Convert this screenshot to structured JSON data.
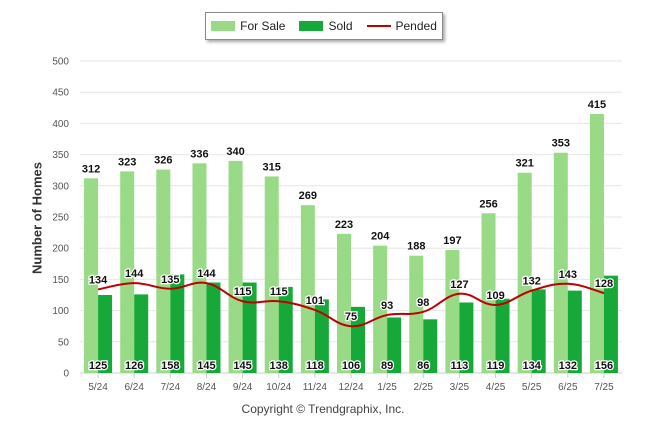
{
  "legend": {
    "for_sale_label": "For Sale",
    "sold_label": "Sold",
    "pended_label": "Pended"
  },
  "copyright": "Copyright © Trendgraphix, Inc.",
  "colors": {
    "for_sale": "#98da86",
    "sold": "#16a93a",
    "pended": "#c00000",
    "grid": "#e6e6e6",
    "axis_text": "#555555"
  },
  "chart_data": {
    "type": "bar",
    "ylabel": "Number of Homes",
    "xlabel": "",
    "ylim": [
      0,
      500
    ],
    "yticks": [
      0,
      50,
      100,
      150,
      200,
      250,
      300,
      350,
      400,
      450,
      500
    ],
    "grid": true,
    "legend_position": "top-center",
    "categories": [
      "5/24",
      "6/24",
      "7/24",
      "8/24",
      "9/24",
      "10/24",
      "11/24",
      "12/24",
      "1/25",
      "2/25",
      "3/25",
      "4/25",
      "5/25",
      "6/25",
      "7/25"
    ],
    "series": [
      {
        "name": "For Sale",
        "type": "bar",
        "values": [
          312,
          323,
          326,
          336,
          340,
          315,
          269,
          223,
          204,
          188,
          197,
          256,
          321,
          353,
          415
        ]
      },
      {
        "name": "Sold",
        "type": "bar",
        "values": [
          125,
          126,
          158,
          145,
          145,
          138,
          118,
          106,
          89,
          86,
          113,
          119,
          134,
          132,
          156
        ]
      },
      {
        "name": "Pended",
        "type": "line",
        "values": [
          134,
          144,
          135,
          144,
          115,
          115,
          101,
          75,
          93,
          98,
          127,
          109,
          132,
          143,
          128
        ]
      }
    ]
  }
}
